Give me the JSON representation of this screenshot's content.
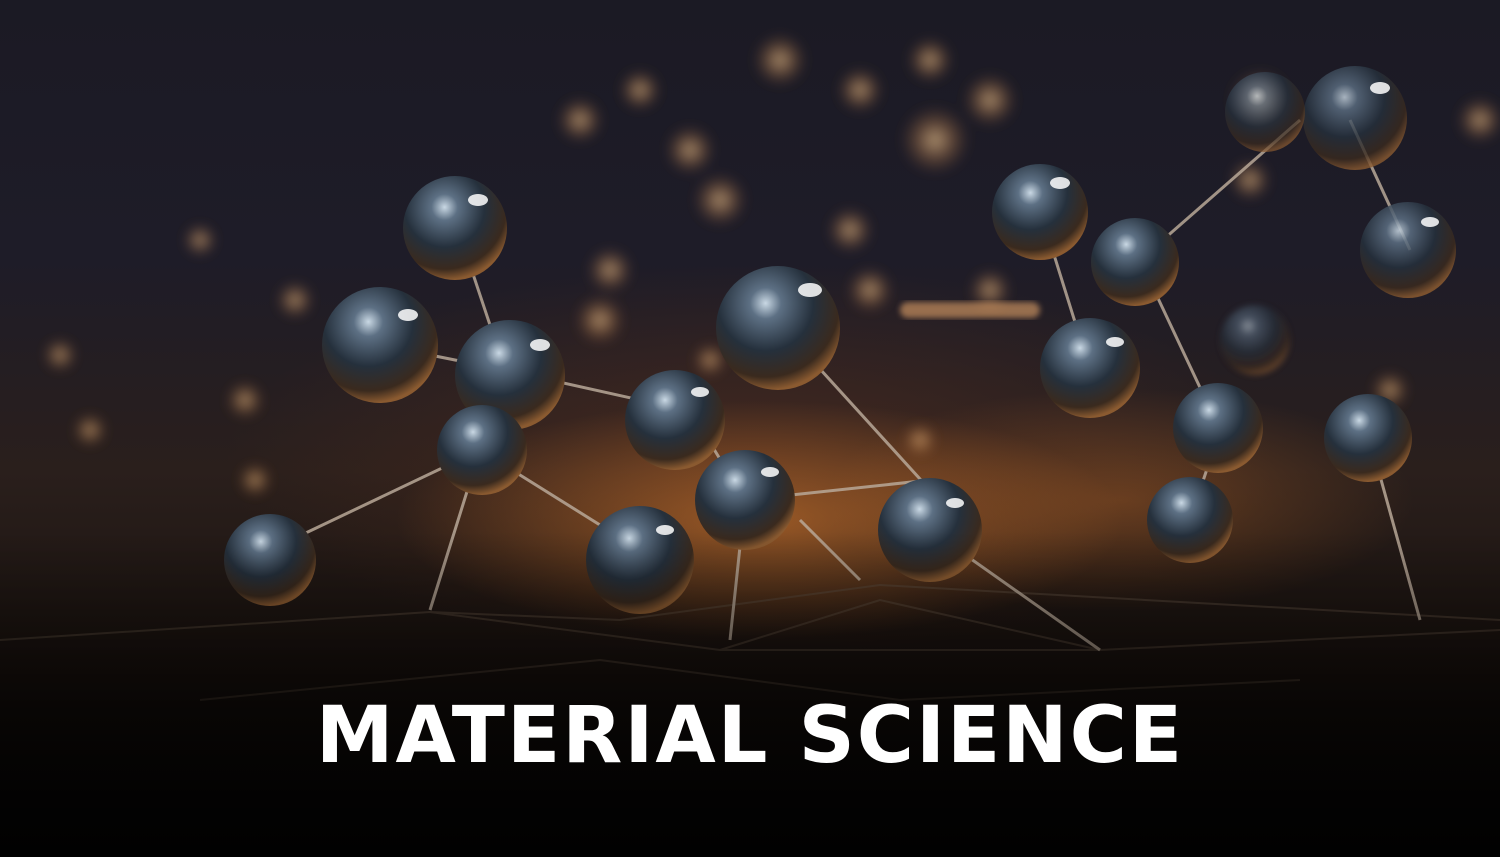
{
  "hero": {
    "title": "MATERIAL SCIENCE"
  },
  "colors": {
    "background": "#1b1a24",
    "glow": "#e88430",
    "sphere": "#3a4a5c",
    "title": "#ffffff"
  }
}
